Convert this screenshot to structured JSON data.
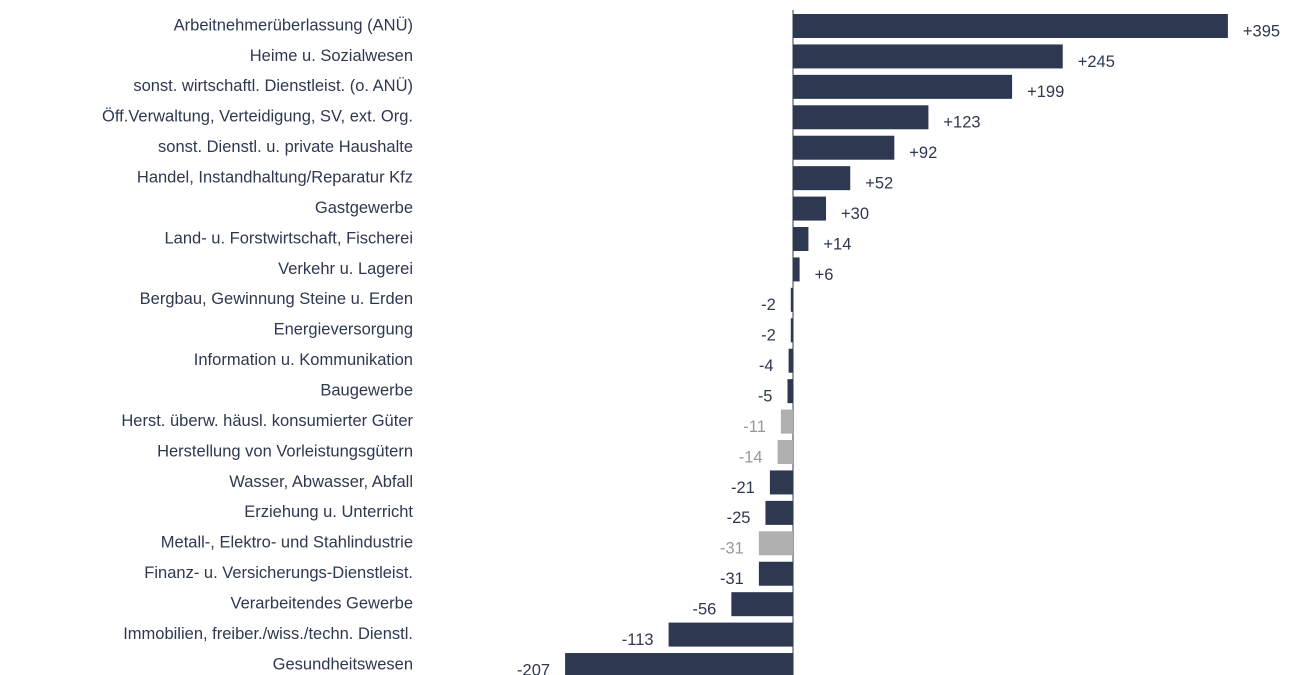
{
  "chart_data": {
    "type": "barh",
    "categories": [
      "Arbeitnehmerüberlassung (ANÜ)",
      "Heime u. Sozialwesen",
      "sonst. wirtschaftl. Dienstleist. (o. ANÜ)",
      "Öff.Verwaltung, Verteidigung, SV, ext. Org.",
      "sonst. Dienstl. u. private Haushalte",
      "Handel, Instandhaltung/Reparatur Kfz",
      "Gastgewerbe",
      "Land- u. Forstwirtschaft, Fischerei",
      "Verkehr u. Lagerei",
      "Bergbau, Gewinnung Steine u. Erden",
      "Energieversorgung",
      "Information u. Kommunikation",
      "Baugewerbe",
      "Herst. überw. häusl. konsumierter Güter",
      "Herstellung von Vorleistungsgütern",
      "Wasser, Abwasser, Abfall",
      "Erziehung u. Unterricht",
      "Metall-, Elektro- und Stahlindustrie",
      "Finanz- u. Versicherungs-Dienstleist.",
      "Verarbeitendes Gewerbe",
      "Immobilien, freiber./wiss./techn. Dienstl.",
      "Gesundheitswesen"
    ],
    "values": [
      395,
      245,
      199,
      123,
      92,
      52,
      30,
      14,
      6,
      -2,
      -2,
      -4,
      -5,
      -11,
      -14,
      -21,
      -25,
      -31,
      -31,
      -56,
      -113,
      -207
    ],
    "value_labels": [
      "+395",
      "+245",
      "+199",
      "+123",
      "+92",
      "+52",
      "+30",
      "+14",
      "+6",
      "-2",
      "-2",
      "-4",
      "-5",
      "-11",
      "-14",
      "-21",
      "-25",
      "-31",
      "-31",
      "-56",
      "-113",
      "-207"
    ],
    "colors": [
      "#2e3850",
      "#2e3850",
      "#2e3850",
      "#2e3850",
      "#2e3850",
      "#2e3850",
      "#2e3850",
      "#2e3850",
      "#2e3850",
      "#2e3850",
      "#2e3850",
      "#2e3850",
      "#2e3850",
      "#b0b0b0",
      "#b0b0b0",
      "#2e3850",
      "#2e3850",
      "#b0b0b0",
      "#2e3850",
      "#2e3850",
      "#2e3850",
      "#2e3850"
    ]
  }
}
